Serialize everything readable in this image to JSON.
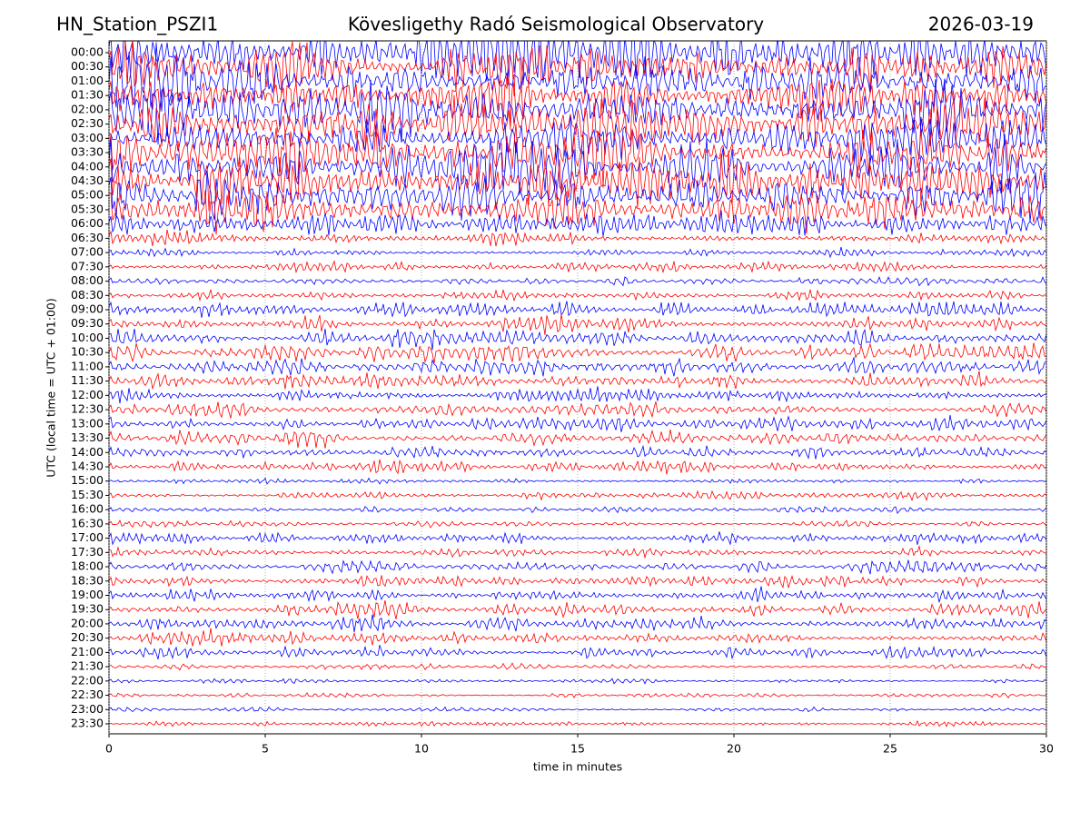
{
  "chart_data": {
    "type": "helicorder",
    "title_left": "HN_Station_PSZI1",
    "title": "Kövesligethy Radó Seismological Observatory",
    "title_right": "2026-03-19",
    "x_label": "time in minutes",
    "y_label": "UTC (local time = UTC + 01:00)",
    "categories": [
      "00:00",
      "00:30",
      "01:00",
      "01:30",
      "02:00",
      "02:30",
      "03:00",
      "03:30",
      "04:00",
      "04:30",
      "05:00",
      "05:30",
      "06:00",
      "06:30",
      "07:00",
      "07:30",
      "08:00",
      "08:30",
      "09:00",
      "09:30",
      "10:00",
      "10:30",
      "11:00",
      "11:30",
      "12:00",
      "12:30",
      "13:00",
      "13:30",
      "14:00",
      "14:30",
      "15:00",
      "15:30",
      "16:00",
      "16:30",
      "17:00",
      "17:30",
      "18:00",
      "18:30",
      "19:00",
      "19:30",
      "20:00",
      "20:30",
      "21:00",
      "21:30",
      "22:00",
      "22:30",
      "23:00",
      "23:30"
    ],
    "values": [
      5,
      5,
      5,
      5,
      5,
      5,
      5,
      5,
      5,
      5,
      4.5,
      4,
      2,
      1.5,
      0.8,
      0.8,
      0.8,
      0.9,
      1.5,
      1.5,
      1.6,
      1.6,
      1.5,
      1.4,
      1.3,
      1.3,
      1.3,
      1.2,
      1.2,
      1.1,
      0.6,
      0.7,
      0.5,
      0.6,
      1,
      1,
      1.1,
      1.1,
      1.2,
      1.3,
      1.3,
      1.3,
      1.2,
      0.5,
      0.4,
      0.4,
      0.4,
      0.4
    ],
    "colors": [
      "#0000ff",
      "#ff0000"
    ],
    "xlim": [
      0,
      30
    ],
    "xticks": [
      0,
      5,
      10,
      15,
      20,
      25,
      30
    ],
    "grid": true
  }
}
